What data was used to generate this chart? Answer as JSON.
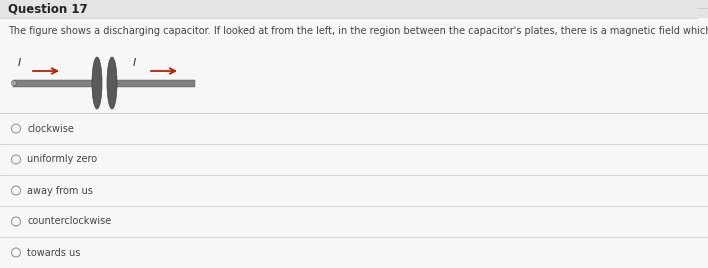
{
  "title": "Question 17",
  "question_text": "The figure shows a discharging capacitor. If looked at from the left, in the region between the capacitor's plates, there is a magnetic field which is:",
  "options": [
    "clockwise",
    "uniformly zero",
    "away from us",
    "counterclockwise",
    "towards us"
  ],
  "bg_color": "#ebebeb",
  "content_bg": "#f7f7f7",
  "title_bar_color": "#e4e4e4",
  "title_fontsize": 8.5,
  "question_fontsize": 7.0,
  "option_fontsize": 7.0,
  "wire_color": "#808080",
  "plate_color": "#666666",
  "arrow_color": "#bb2200",
  "label_color": "#555555",
  "separator_color": "#d0d0d0"
}
